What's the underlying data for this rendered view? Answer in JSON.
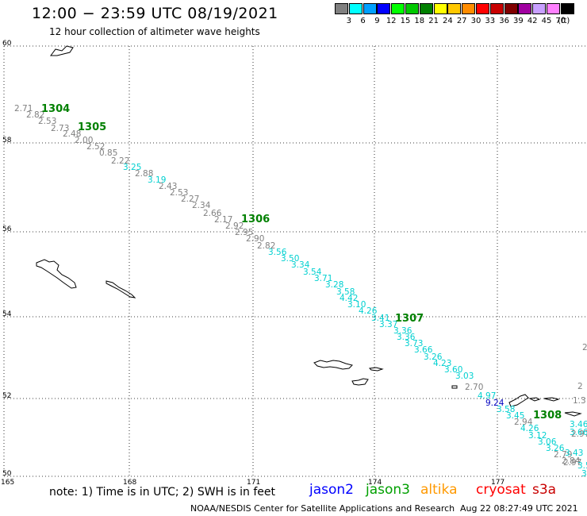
{
  "title": "12:00 − 23:59 UTC 08/19/2021",
  "subtitle": "12 hour collection of altimeter wave heights",
  "legend": {
    "unit": "(ft)",
    "bins": [
      {
        "label": "3",
        "color": "#808080"
      },
      {
        "label": "6",
        "color": "#00ffff"
      },
      {
        "label": "9",
        "color": "#00a0ff"
      },
      {
        "label": "12",
        "color": "#0000ff"
      },
      {
        "label": "15",
        "color": "#00ff00"
      },
      {
        "label": "18",
        "color": "#00c800"
      },
      {
        "label": "21",
        "color": "#008000"
      },
      {
        "label": "24",
        "color": "#ffff00"
      },
      {
        "label": "27",
        "color": "#ffc800"
      },
      {
        "label": "30",
        "color": "#ff8c00"
      },
      {
        "label": "33",
        "color": "#ff0000"
      },
      {
        "label": "36",
        "color": "#c80000"
      },
      {
        "label": "39",
        "color": "#800000"
      },
      {
        "label": "42",
        "color": "#a000a0"
      },
      {
        "label": "45",
        "color": "#c8a0ff"
      },
      {
        "label": "70",
        "color": "#ff80ff"
      },
      {
        "label": "",
        "color": "#000000"
      }
    ]
  },
  "map": {
    "lat_labels": [
      "60",
      "58",
      "56",
      "54",
      "52",
      "50"
    ],
    "lon_labels": [
      "165",
      "168",
      "171",
      "174",
      "177"
    ],
    "pass_labels": [
      "1304",
      "1305",
      "1306",
      "1307",
      "1308"
    ],
    "track_values": [
      {
        "v": "2.71",
        "c": "#808080"
      },
      {
        "v": "2.82",
        "c": "#808080"
      },
      {
        "v": "2.53",
        "c": "#808080"
      },
      {
        "v": "2.73",
        "c": "#808080"
      },
      {
        "v": "2.48",
        "c": "#808080"
      },
      {
        "v": "2.00",
        "c": "#808080"
      },
      {
        "v": "2.52",
        "c": "#808080"
      },
      {
        "v": "0.85",
        "c": "#808080"
      },
      {
        "v": "2.22",
        "c": "#808080"
      },
      {
        "v": "3.25",
        "c": "#00d0d0"
      },
      {
        "v": "2.88",
        "c": "#808080"
      },
      {
        "v": "3.19",
        "c": "#00d0d0"
      },
      {
        "v": "2.43",
        "c": "#808080"
      },
      {
        "v": "2.53",
        "c": "#808080"
      },
      {
        "v": "2.27",
        "c": "#808080"
      },
      {
        "v": "2.34",
        "c": "#808080"
      },
      {
        "v": "2.66",
        "c": "#808080"
      },
      {
        "v": "2.17",
        "c": "#808080"
      },
      {
        "v": "2.92",
        "c": "#808080"
      },
      {
        "v": "2.95",
        "c": "#808080"
      },
      {
        "v": "2.90",
        "c": "#808080"
      },
      {
        "v": "2.82",
        "c": "#808080"
      },
      {
        "v": "3.56",
        "c": "#00d0d0"
      },
      {
        "v": "3.50",
        "c": "#00d0d0"
      },
      {
        "v": "3.34",
        "c": "#00d0d0"
      },
      {
        "v": "3.54",
        "c": "#00d0d0"
      },
      {
        "v": "3.71",
        "c": "#00d0d0"
      },
      {
        "v": "3.28",
        "c": "#00d0d0"
      },
      {
        "v": "3.58",
        "c": "#00d0d0"
      },
      {
        "v": "4.42",
        "c": "#00d0d0"
      },
      {
        "v": "3.10",
        "c": "#00d0d0"
      },
      {
        "v": "4.26",
        "c": "#00d0d0"
      },
      {
        "v": "3.41",
        "c": "#00d0d0"
      },
      {
        "v": "3.37",
        "c": "#00d0d0"
      },
      {
        "v": "3.36",
        "c": "#00d0d0"
      },
      {
        "v": "3.36",
        "c": "#00d0d0"
      },
      {
        "v": "3.73",
        "c": "#00d0d0"
      },
      {
        "v": "3.66",
        "c": "#00d0d0"
      },
      {
        "v": "3.26",
        "c": "#00d0d0"
      },
      {
        "v": "4.23",
        "c": "#00d0d0"
      },
      {
        "v": "3.60",
        "c": "#00d0d0"
      },
      {
        "v": "3.03",
        "c": "#00d0d0"
      },
      {
        "v": "2.70",
        "c": "#808080"
      },
      {
        "v": "4.97",
        "c": "#00d0d0"
      },
      {
        "v": "9.24",
        "c": "#0000c0"
      },
      {
        "v": "3.58",
        "c": "#00d0d0"
      },
      {
        "v": "3.45",
        "c": "#00d0d0"
      },
      {
        "v": "2.94",
        "c": "#808080"
      },
      {
        "v": "4.26",
        "c": "#00d0d0"
      },
      {
        "v": "3.12",
        "c": "#00d0d0"
      },
      {
        "v": "3.06",
        "c": "#00d0d0"
      },
      {
        "v": "3.26",
        "c": "#00d0d0"
      },
      {
        "v": "2.79",
        "c": "#808080"
      },
      {
        "v": "3.43",
        "c": "#00d0d0"
      },
      {
        "v": "2.84",
        "c": "#808080"
      },
      {
        "v": "2.97",
        "c": "#808080"
      },
      {
        "v": "3.46",
        "c": "#00d0d0"
      },
      {
        "v": "3.66",
        "c": "#00d0d0"
      },
      {
        "v": "2.97",
        "c": "#808080"
      },
      {
        "v": "3.5",
        "c": "#00d0d0"
      },
      {
        "v": "3",
        "c": "#00d0d0"
      },
      {
        "v": "2",
        "c": "#808080"
      },
      {
        "v": "2",
        "c": "#808080"
      },
      {
        "v": "1.3",
        "c": "#808080"
      }
    ]
  },
  "note": "note:  1) Time is in UTC;  2) SWH is in feet",
  "missions": [
    {
      "name": "jason2",
      "color": "#0000ff"
    },
    {
      "name": "jason3",
      "color": "#00a000"
    },
    {
      "name": "altika",
      "color": "#ff9900"
    },
    {
      "name": "cryosat",
      "color": "#ff0000"
    },
    {
      "name": "s3a",
      "color": "#c80000"
    }
  ],
  "credit": "NOAA/NESDIS Center for Satellite Applications and Research",
  "timestamp": "Aug 22 08:27:49 UTC 2021"
}
